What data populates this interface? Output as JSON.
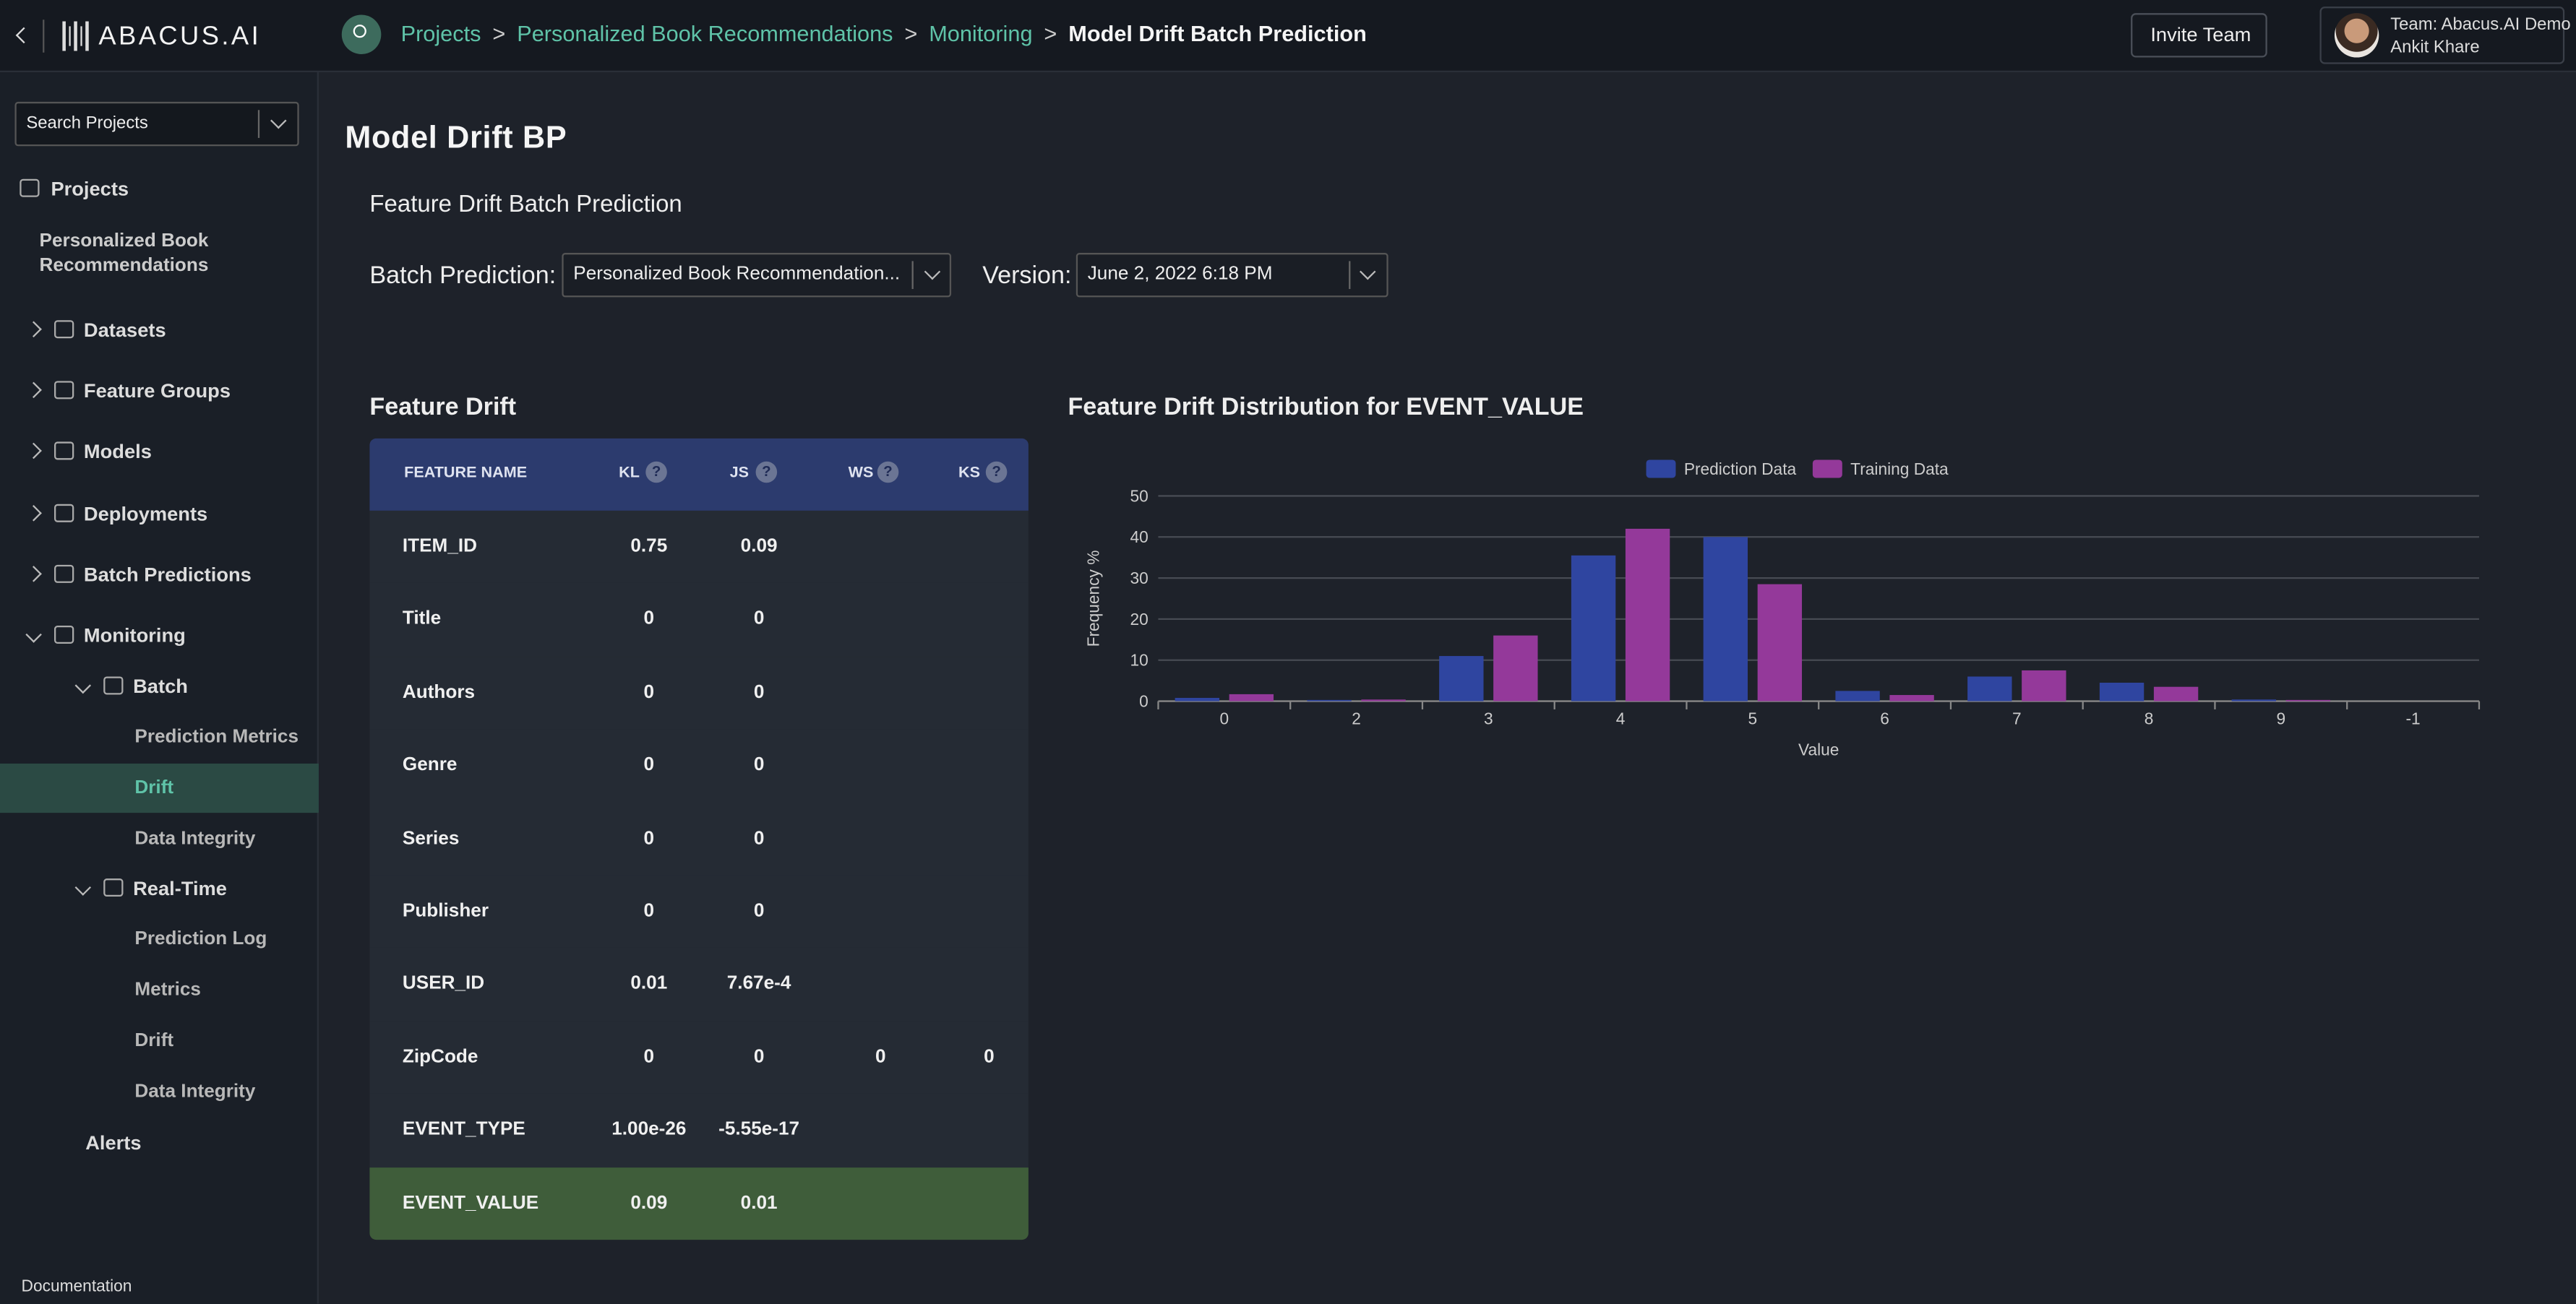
{
  "header": {
    "logo": "ABACUS.AI",
    "breadcrumbs": [
      "Projects",
      "Personalized Book Recommendations",
      "Monitoring",
      "Model Drift Batch Prediction"
    ],
    "breadcrumb_separator": ">",
    "invite_button": "Invite Team",
    "team": "Team: Abacus.AI Demo",
    "user": "Ankit Khare"
  },
  "sidebar": {
    "search_placeholder": "Search Projects",
    "projects_label": "Projects",
    "project_name": "Personalized Book Recommendations",
    "nav": [
      "Datasets",
      "Feature Groups",
      "Models",
      "Deployments",
      "Batch Predictions",
      "Monitoring",
      "Batch",
      "Prediction Metrics",
      "Drift",
      "Data Integrity",
      "Real-Time",
      "Prediction Log",
      "Metrics",
      "Drift",
      "Data Integrity",
      "Alerts"
    ],
    "footer": "Documentation"
  },
  "main": {
    "title": "Model Drift BP",
    "section_title": "Feature Drift Batch Prediction",
    "batch_label": "Batch Prediction:",
    "batch_value": "Personalized Book Recommendation...",
    "version_label": "Version:",
    "version_value": "June 2, 2022 6:18 PM"
  },
  "table": {
    "title": "Feature Drift",
    "columns": [
      "FEATURE NAME",
      "KL",
      "JS",
      "WS",
      "KS"
    ],
    "help_icon": "?",
    "rows": [
      [
        "ITEM_ID",
        "0.75",
        "0.09"
      ],
      [
        "Title",
        "0",
        "0"
      ],
      [
        "Authors",
        "0",
        "0"
      ],
      [
        "Genre",
        "0",
        "0"
      ],
      [
        "Series",
        "0",
        "0"
      ],
      [
        "Publisher",
        "0",
        "0"
      ],
      [
        "USER_ID",
        "0.01",
        "7.67e-4"
      ],
      [
        "ZipCode",
        "0",
        "0",
        "0",
        "0"
      ],
      [
        "EVENT_TYPE",
        "1.00e-26",
        "-5.55e-17"
      ],
      [
        "EVENT_VALUE",
        "0.09",
        "0.01"
      ]
    ]
  },
  "chart_data": {
    "type": "bar",
    "title": "Feature Drift Distribution for EVENT_VALUE",
    "x_label": "Value",
    "y_label": "Frequency %",
    "categories": [
      "0",
      "2",
      "3",
      "4",
      "5",
      "6",
      "7",
      "8",
      "9",
      "-1"
    ],
    "series": [
      {
        "name": "Prediction Data",
        "color": "#2f45a0",
        "values": [
          0.8,
          0.3,
          11,
          35.5,
          40,
          2.5,
          6,
          4.5,
          0.4,
          0
        ]
      },
      {
        "name": "Training Data",
        "color": "#94399a",
        "values": [
          1.7,
          0.4,
          16,
          42,
          28.5,
          1.5,
          7.5,
          3.5,
          0.3,
          0
        ]
      }
    ],
    "ylim": [
      0,
      50
    ],
    "yticks": [
      0,
      10,
      20,
      30,
      40,
      50
    ],
    "grid": true,
    "legend": "top"
  }
}
